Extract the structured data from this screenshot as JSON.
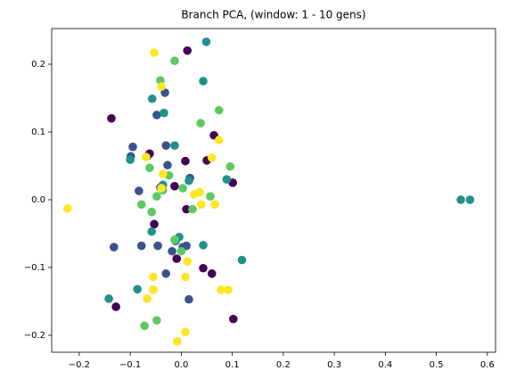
{
  "chart_data": {
    "type": "scatter",
    "title": "Branch PCA, (window: 1 - 10 gens)",
    "xlim": [
      -0.254,
      0.616
    ],
    "ylim": [
      -0.225,
      0.2526
    ],
    "xticks": [
      {
        "value": -0.2,
        "label": "−0.2"
      },
      {
        "value": -0.1,
        "label": "−0.1"
      },
      {
        "value": 0,
        "label": "0.0"
      },
      0.1,
      0.2,
      0.3,
      0.4,
      0.5,
      0.6
    ],
    "yticks": [
      {
        "value": -0.2,
        "label": "−0.2"
      },
      {
        "value": -0.1,
        "label": "−0.1"
      },
      {
        "value": 0,
        "label": "0.0"
      },
      0.1,
      0.2
    ],
    "series": [
      {
        "color": "#440154",
        "x": [
          -0.137,
          0.012,
          0.064,
          -0.062,
          0.008,
          0.05,
          0.101,
          -0.013,
          0.01,
          -0.053,
          -0.009,
          0.043,
          0.06,
          -0.128,
          0.102,
          -0.067
        ],
        "values": [
          0.12,
          0.22,
          0.095,
          0.068,
          0.057,
          0.058,
          0.025,
          0.02,
          -0.014,
          -0.036,
          -0.087,
          -0.101,
          -0.109,
          -0.158,
          -0.176,
          0.064
        ]
      },
      {
        "color": "#3b528b",
        "x": [
          -0.048,
          -0.032,
          -0.095,
          -0.099,
          -0.03,
          -0.027,
          -0.083,
          -0.041,
          0.017,
          -0.132,
          -0.078,
          -0.046,
          -0.018,
          0.003,
          0.01,
          -0.03,
          0.015
        ],
        "values": [
          0.125,
          0.158,
          0.078,
          0.064,
          0.08,
          0.051,
          0.013,
          0.018,
          0.032,
          -0.07,
          -0.068,
          -0.068,
          -0.076,
          -0.07,
          -0.068,
          -0.109,
          -0.147
        ]
      },
      {
        "color": "#21918c",
        "x": [
          0.049,
          0.043,
          -0.057,
          -0.034,
          -0.013,
          -0.1,
          0.089,
          0.015,
          -0.036,
          -0.058,
          -0.004,
          0.043,
          0.119,
          -0.086,
          -0.142,
          -0.011,
          0.548,
          0.566
        ],
        "values": [
          0.233,
          0.175,
          0.149,
          0.128,
          0.08,
          0.059,
          0.03,
          0.028,
          0.022,
          -0.047,
          -0.055,
          -0.067,
          -0.089,
          -0.132,
          -0.146,
          -0.061,
          0.0,
          0.0
        ]
      },
      {
        "color": "#5ec962",
        "x": [
          -0.013,
          -0.041,
          0.074,
          0.038,
          0.096,
          -0.062,
          -0.024,
          -0.036,
          0.003,
          -0.048,
          0.057,
          -0.078,
          -0.058,
          0.022,
          -0.013,
          0.0,
          -0.048,
          -0.072
        ],
        "values": [
          0.205,
          0.176,
          0.132,
          0.113,
          0.049,
          0.047,
          0.036,
          0.014,
          0.017,
          0.005,
          0.005,
          -0.007,
          -0.018,
          -0.014,
          -0.059,
          -0.076,
          -0.178,
          -0.186
        ]
      },
      {
        "color": "#fde725",
        "x": [
          -0.053,
          -0.039,
          0.074,
          0.06,
          -0.069,
          -0.036,
          -0.039,
          0.025,
          0.036,
          0.039,
          0.066,
          -0.223,
          0.012,
          -0.055,
          0.008,
          -0.055,
          0.078,
          0.092,
          -0.067,
          0.008,
          -0.008
        ],
        "values": [
          0.217,
          0.167,
          0.088,
          0.062,
          0.063,
          0.038,
          0.017,
          0.008,
          0.011,
          -0.007,
          -0.007,
          -0.013,
          -0.091,
          -0.114,
          -0.114,
          -0.133,
          -0.133,
          -0.133,
          -0.146,
          -0.195,
          -0.209
        ]
      }
    ]
  }
}
